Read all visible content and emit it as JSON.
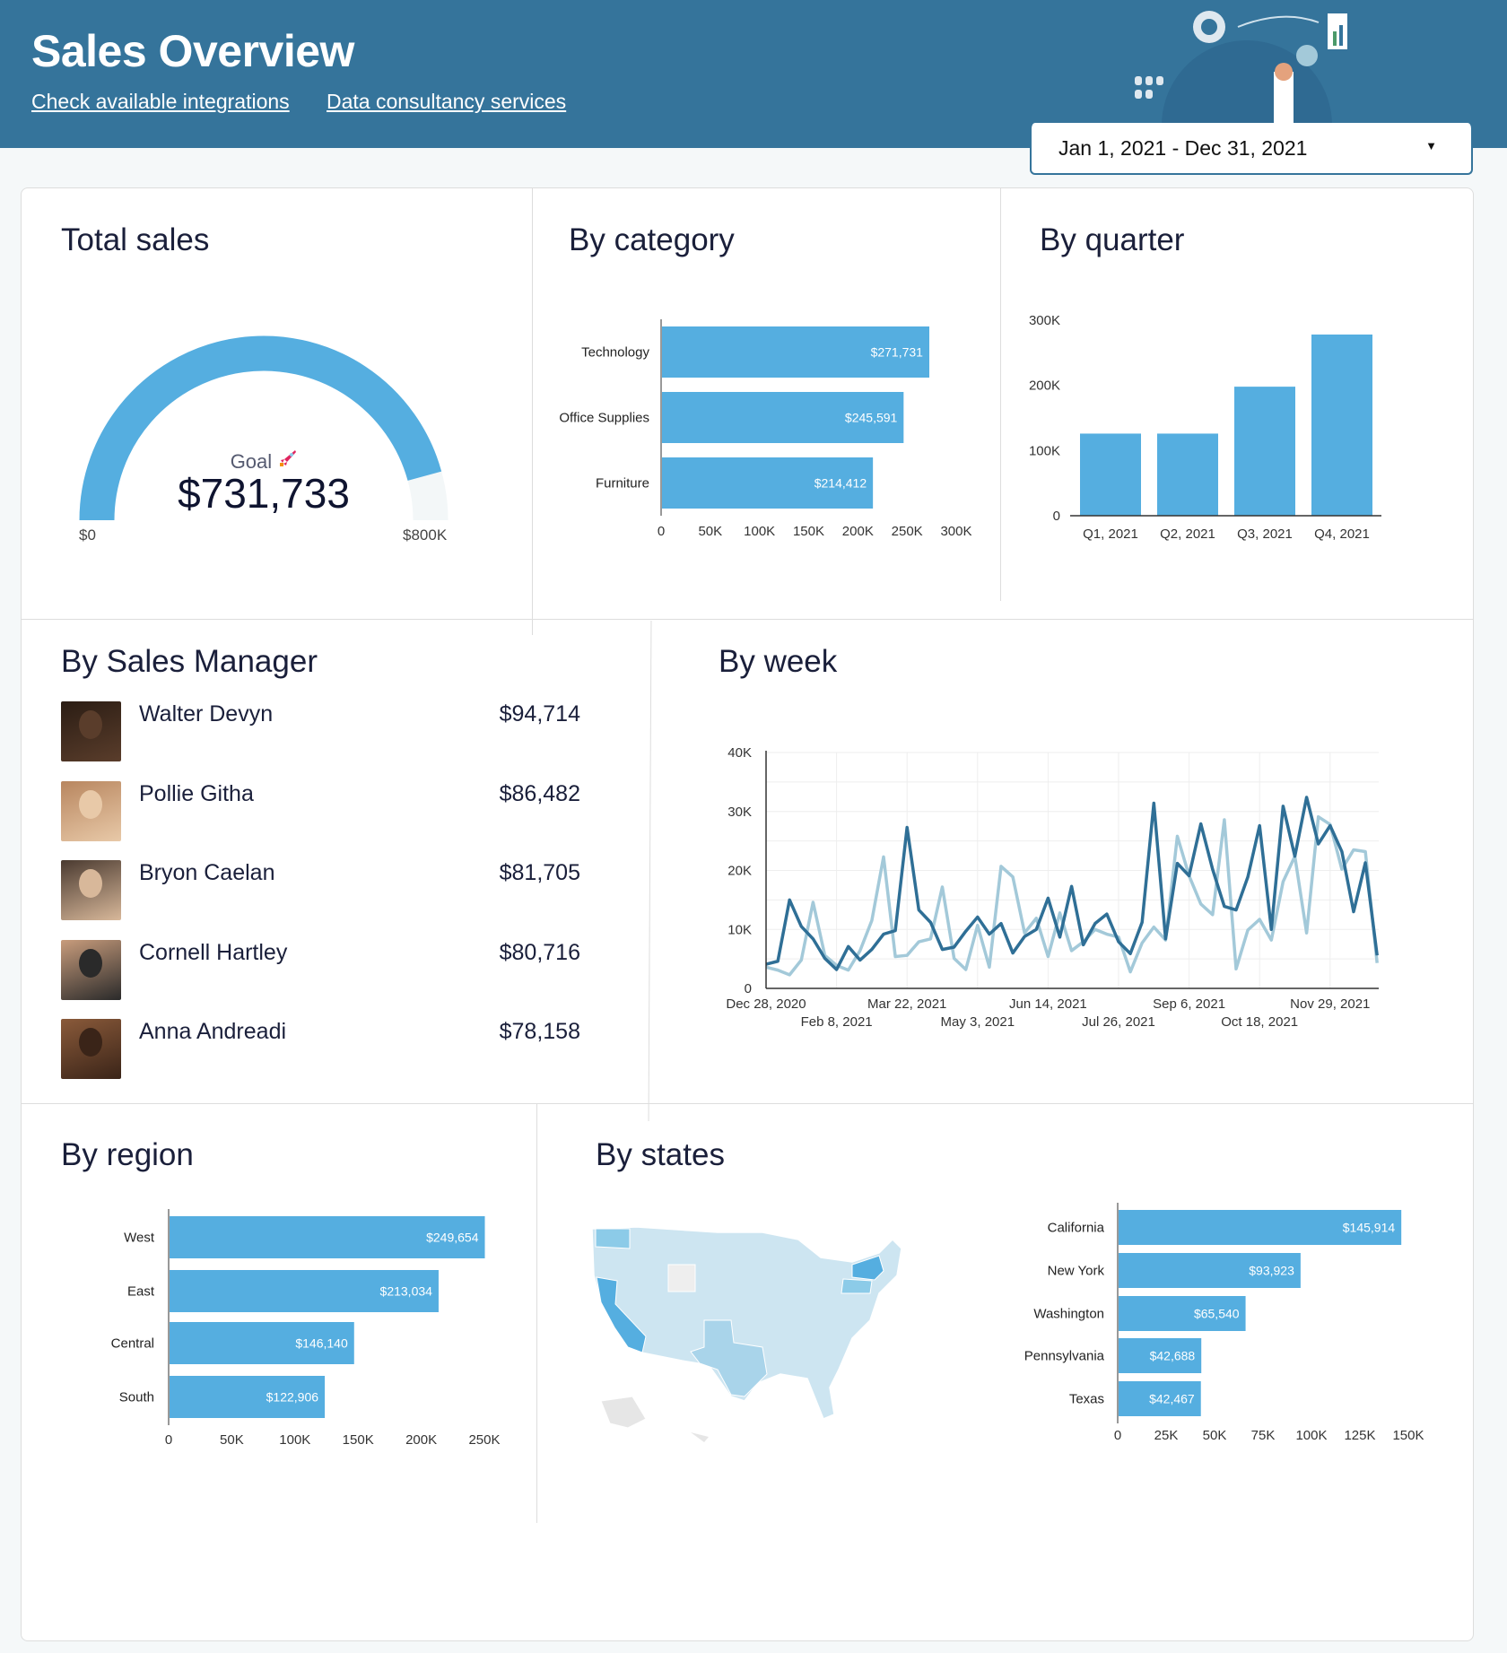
{
  "header": {
    "title": "Sales Overview",
    "links": [
      "Check available integrations",
      "Data consultancy services"
    ],
    "date_range": "Jan 1, 2021 - Dec 31, 2021",
    "bg_color": "#35749b"
  },
  "total_sales": {
    "title": "Total sales",
    "goal_label": "Goal",
    "value_text": "$731,733",
    "value": 731733,
    "min_label": "$0",
    "max_label": "$800K",
    "max": 800000,
    "icon": "rocket-icon",
    "color": "#55aee0"
  },
  "by_category": {
    "title": "By category",
    "chart_data": {
      "type": "bar",
      "orientation": "horizontal",
      "categories": [
        "Technology",
        "Office Supplies",
        "Furniture"
      ],
      "values": [
        271731,
        245591,
        214412
      ],
      "data_labels": [
        "$271,731",
        "$245,591",
        "$214,412"
      ],
      "xlim": [
        0,
        300000
      ],
      "ticks": [
        "0",
        "50K",
        "100K",
        "150K",
        "200K",
        "250K",
        "300K"
      ]
    }
  },
  "by_quarter": {
    "title": "By quarter",
    "chart_data": {
      "type": "bar",
      "categories": [
        "Q1, 2021",
        "Q2, 2021",
        "Q3, 2021",
        "Q4, 2021"
      ],
      "values": [
        126000,
        126000,
        198000,
        278000
      ],
      "ylim": [
        0,
        300000
      ],
      "ticks": [
        "0",
        "100K",
        "200K",
        "300K"
      ]
    }
  },
  "by_manager": {
    "title": "By Sales Manager",
    "items": [
      {
        "name": "Walter Devyn",
        "amount": "$94,714"
      },
      {
        "name": "Pollie Githa",
        "amount": "$86,482"
      },
      {
        "name": "Bryon Caelan",
        "amount": "$81,705"
      },
      {
        "name": "Cornell Hartley",
        "amount": "$80,716"
      },
      {
        "name": "Anna Andreadi",
        "amount": "$78,158"
      }
    ]
  },
  "by_week": {
    "title": "By week",
    "chart_data": {
      "type": "line",
      "x_start": "Dec 28, 2020",
      "x_interval": "week",
      "ylim": [
        0,
        40000
      ],
      "yticks": [
        "0",
        "10K",
        "20K",
        "30K",
        "40K"
      ],
      "xticks": [
        "Dec 28, 2020",
        "Feb 8, 2021",
        "Mar 22, 2021",
        "May 3, 2021",
        "Jun 14, 2021",
        "Jul 26, 2021",
        "Sep 6, 2021",
        "Oct 18, 2021",
        "Nov 29, 2021"
      ],
      "series": [
        {
          "color": "#2f6f96",
          "values": [
            4.1,
            4.6,
            15,
            10.5,
            8.4,
            5.1,
            3.2,
            7.1,
            4.8,
            6.6,
            9.2,
            9.8,
            27.3,
            13.3,
            11.2,
            6.6,
            7,
            9.7,
            12.1,
            9.2,
            11,
            6,
            8.8,
            10,
            15.3,
            8.7,
            17.3,
            7.4,
            11,
            12.6,
            7.9,
            5.9,
            11.2,
            31.4,
            8.4,
            21.2,
            19.1,
            27.9,
            20.2,
            13.9,
            13.3,
            18.9,
            27.6,
            10,
            30.9,
            22.4,
            32.4,
            24.5,
            27.6,
            23.2,
            13,
            21.3,
            5.6
          ]
        },
        {
          "color": "#a3c9d9",
          "values": [
            3.6,
            3.1,
            2.3,
            4.8,
            14.6,
            5.6,
            3.9,
            3.1,
            6.4,
            11.5,
            22.3,
            5.4,
            5.6,
            7.9,
            8.4,
            17.2,
            5.1,
            3.2,
            10.7,
            3.6,
            20.7,
            18.9,
            9.4,
            11.9,
            5.4,
            12.8,
            6.4,
            7.9,
            10,
            9.2,
            8.7,
            2.8,
            7.7,
            10.4,
            8.2,
            25.8,
            19.1,
            14.3,
            12.5,
            28.6,
            3.3,
            9.9,
            11.7,
            8.2,
            18.1,
            22.4,
            9.4,
            29.1,
            27.8,
            20.2,
            23.5,
            23.2,
            4.3
          ]
        }
      ],
      "value_unit": "K"
    }
  },
  "by_region": {
    "title": "By region",
    "chart_data": {
      "type": "bar",
      "orientation": "horizontal",
      "categories": [
        "West",
        "East",
        "Central",
        "South"
      ],
      "values": [
        249654,
        213034,
        146140,
        122906
      ],
      "data_labels": [
        "$249,654",
        "$213,034",
        "$146,140",
        "$122,906"
      ],
      "xlim": [
        0,
        250000
      ],
      "ticks": [
        "0",
        "50K",
        "100K",
        "150K",
        "200K",
        "250K"
      ]
    }
  },
  "by_states": {
    "title": "By states",
    "chart_data": {
      "type": "bar",
      "orientation": "horizontal",
      "categories": [
        "California",
        "New York",
        "Washington",
        "Pennsylvania",
        "Texas"
      ],
      "values": [
        145914,
        93923,
        65540,
        42688,
        42467
      ],
      "data_labels": [
        "$145,914",
        "$93,923",
        "$65,540",
        "$42,688",
        "$42,467"
      ],
      "xlim": [
        0,
        150000
      ],
      "ticks": [
        "0",
        "25K",
        "50K",
        "75K",
        "100K",
        "125K",
        "150K"
      ]
    }
  },
  "colors": {
    "bar": "#55aee0",
    "axis": "#333",
    "text": "#1a1f3a"
  }
}
